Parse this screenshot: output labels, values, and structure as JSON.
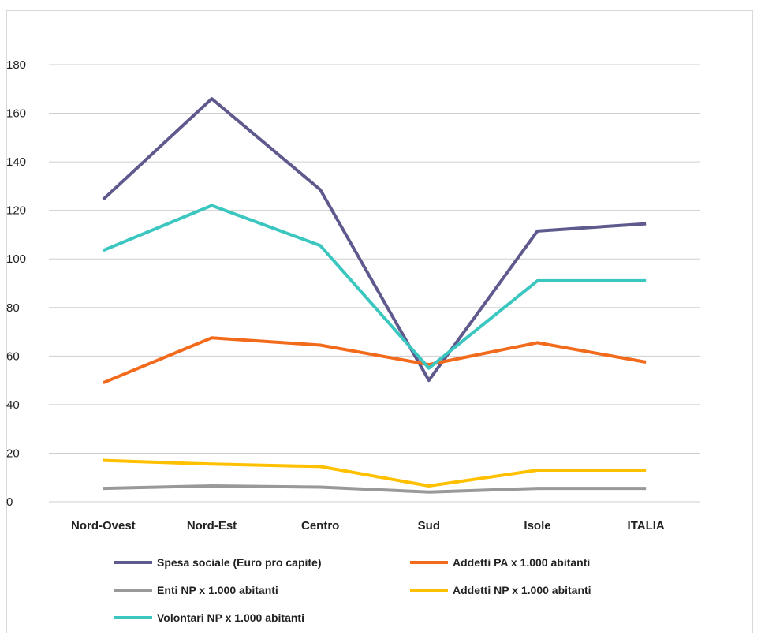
{
  "chart_data": {
    "type": "line",
    "title": "",
    "xlabel": "",
    "ylabel": "",
    "categories": [
      "Nord-Ovest",
      "Nord-Est",
      "Centro",
      "Sud",
      "Isole",
      "ITALIA"
    ],
    "ylim": [
      0,
      180
    ],
    "yticks": [
      0,
      20,
      40,
      60,
      80,
      100,
      120,
      140,
      160,
      180
    ],
    "grid": true,
    "legend_position": "bottom",
    "series": [
      {
        "name": "Spesa sociale (Euro pro capite)",
        "color": "#5f5a8e",
        "values": [
          124.5,
          166,
          128.5,
          50,
          111.5,
          114.5
        ]
      },
      {
        "name": "Addetti PA x 1.000 abitanti",
        "color": "#f26a1b",
        "values": [
          49,
          67.5,
          64.5,
          56.5,
          65.5,
          57.5
        ]
      },
      {
        "name": "Enti NP x 1.000 abitanti",
        "color": "#999999",
        "values": [
          5.5,
          6.5,
          6,
          4,
          5.5,
          5.5
        ]
      },
      {
        "name": "Addetti NP x 1.000 abitanti",
        "color": "#ffc000",
        "values": [
          17,
          15.5,
          14.5,
          6.5,
          13,
          13
        ]
      },
      {
        "name": "Volontari NP x 1.000 abitanti",
        "color": "#3cc6c0",
        "values": [
          103.5,
          122,
          105.5,
          55,
          91,
          91
        ]
      }
    ]
  }
}
